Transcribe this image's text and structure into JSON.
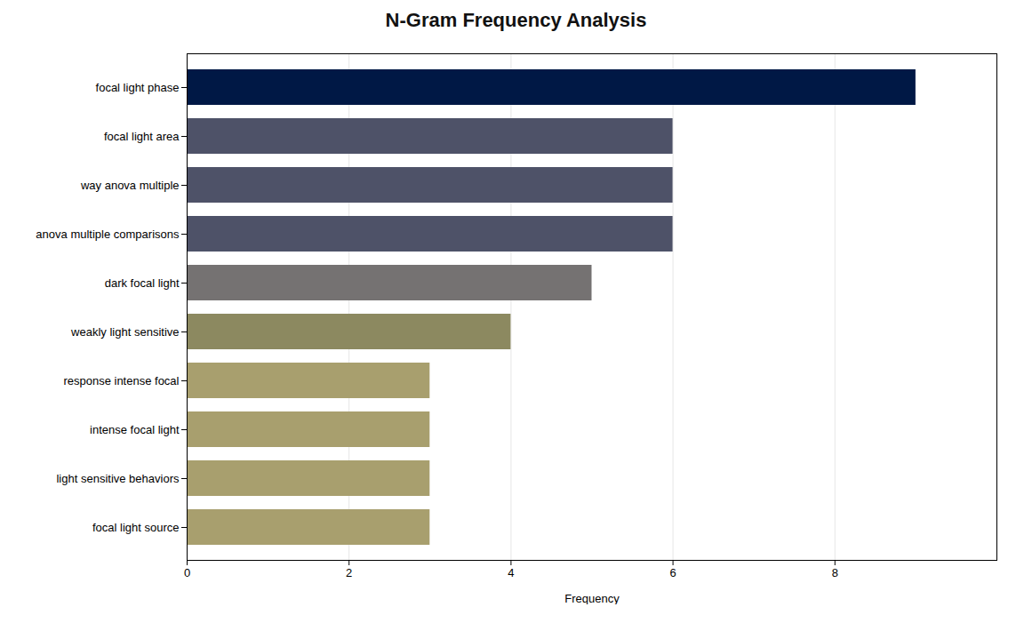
{
  "chart_data": {
    "type": "bar",
    "orientation": "horizontal",
    "title": "N-Gram Frequency Analysis",
    "xlabel": "Frequency",
    "categories": [
      "focal light source",
      "light sensitive behaviors",
      "intense focal light",
      "response intense focal",
      "weakly light sensitive",
      "dark focal light",
      "anova multiple comparisons",
      "way anova multiple",
      "focal light area",
      "focal light phase"
    ],
    "values": [
      3,
      3,
      3,
      3,
      4,
      5,
      6,
      6,
      6,
      9
    ],
    "colors": [
      "#a89f6e",
      "#a89f6e",
      "#a89f6e",
      "#a89f6e",
      "#8c8960",
      "#757272",
      "#4e5268",
      "#4e5268",
      "#4e5268",
      "#001845"
    ],
    "xlim": [
      0,
      10
    ],
    "xticks": [
      0,
      2,
      4,
      6,
      8
    ],
    "grid": true
  }
}
